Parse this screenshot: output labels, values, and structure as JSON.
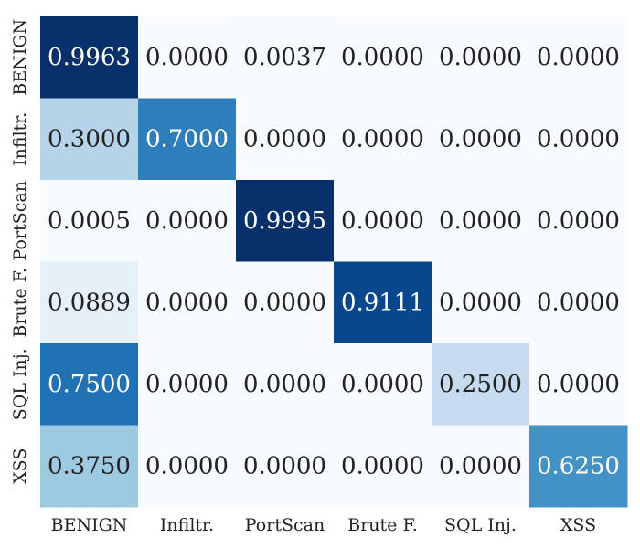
{
  "chart_data": {
    "type": "heatmap",
    "title": "",
    "xlabel": "",
    "ylabel": "",
    "x_categories": [
      "BENIGN",
      "Infiltr.",
      "PortScan",
      "Brute F.",
      "SQL Inj.",
      "XSS"
    ],
    "y_categories": [
      "BENIGN",
      "Infiltr.",
      "PortScan",
      "Brute F.",
      "SQL Inj.",
      "XSS"
    ],
    "values": [
      [
        0.9963,
        0.0,
        0.0037,
        0.0,
        0.0,
        0.0
      ],
      [
        0.3,
        0.7,
        0.0,
        0.0,
        0.0,
        0.0
      ],
      [
        0.0005,
        0.0,
        0.9995,
        0.0,
        0.0,
        0.0
      ],
      [
        0.0889,
        0.0,
        0.0,
        0.9111,
        0.0,
        0.0
      ],
      [
        0.75,
        0.0,
        0.0,
        0.0,
        0.25,
        0.0
      ],
      [
        0.375,
        0.0,
        0.0,
        0.0,
        0.0,
        0.625
      ]
    ],
    "value_range": [
      0,
      1
    ],
    "colormap": "Blues",
    "grid": false,
    "legend": "none"
  }
}
